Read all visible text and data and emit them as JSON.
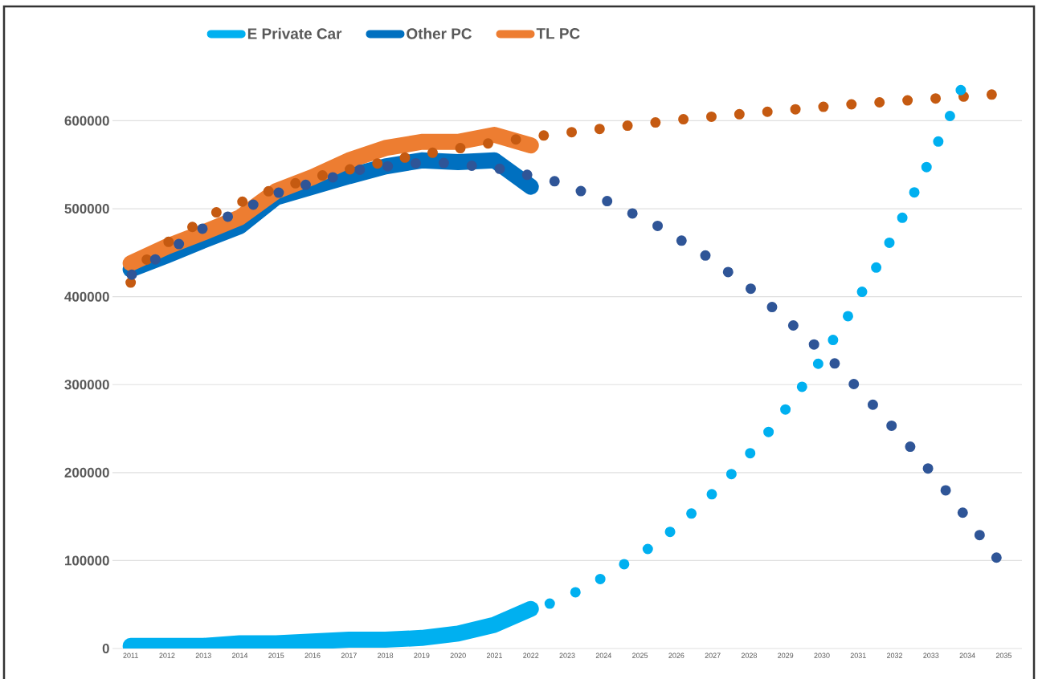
{
  "chart_data": {
    "type": "line",
    "xlim": [
      2010.5,
      2035.5
    ],
    "xticks": [
      2011,
      2012,
      2013,
      2014,
      2015,
      2016,
      2017,
      2018,
      2019,
      2020,
      2021,
      2022,
      2023,
      2024,
      2025,
      2026,
      2027,
      2028,
      2029,
      2030,
      2031,
      2032,
      2033,
      2034,
      2035
    ],
    "ylim": [
      0,
      730000
    ],
    "yticks": [
      0,
      100000,
      200000,
      300000,
      400000,
      500000,
      600000
    ],
    "grid": "y",
    "legend": "top",
    "series": [
      {
        "name": "E Private Car",
        "color": "#00b0f0",
        "line_style": "solid",
        "x": [
          2011,
          2012,
          2013,
          2014,
          2015,
          2016,
          2017,
          2018,
          2019,
          2020,
          2021,
          2022
        ],
        "values": [
          3000,
          3000,
          3000,
          6000,
          6000,
          8000,
          10000,
          10000,
          12000,
          17000,
          27000,
          45000
        ]
      },
      {
        "name": "Other PC",
        "color": "#0070c0",
        "line_style": "solid",
        "x": [
          2011,
          2012,
          2013,
          2014,
          2015,
          2016,
          2017,
          2018,
          2019,
          2020,
          2021,
          2022
        ],
        "values": [
          431000,
          447000,
          464000,
          480000,
          513000,
          525000,
          537000,
          548000,
          555000,
          553000,
          555000,
          525000
        ]
      },
      {
        "name": "TL PC",
        "color": "#ed7d31",
        "line_style": "solid",
        "x": [
          2011,
          2012,
          2013,
          2014,
          2015,
          2016,
          2017,
          2018,
          2019,
          2020,
          2021,
          2022
        ],
        "values": [
          438000,
          457000,
          473000,
          490000,
          520000,
          536000,
          555000,
          569000,
          576000,
          576000,
          584000,
          572000
        ]
      },
      {
        "color": "#c55a11",
        "line_style": "dotted",
        "x": [
          2011,
          2011.44,
          2012.09,
          2013.4,
          2014.86,
          2016.37,
          2018.64,
          2020.94,
          2022.49,
          2026.25,
          2030.9,
          2034.76
        ],
        "values": [
          416000,
          442000,
          464000,
          497000,
          521000,
          539000,
          559000,
          575000,
          584000,
          602000,
          619000,
          630000
        ]
      },
      {
        "color": "#2f5597",
        "line_style": "dotted",
        "x": [
          2011.03,
          2013.0,
          2015.11,
          2017.36,
          2018.9,
          2019.69,
          2021.22,
          2022.68,
          2024.14,
          2025.51,
          2026.83,
          2028.08,
          2029.25,
          2030.38,
          2031.45,
          2032.48,
          2033.46,
          2034.39,
          2034.86
        ],
        "values": [
          425000,
          478000,
          519000,
          545000,
          552000,
          552000,
          545000,
          531000,
          508000,
          480000,
          446000,
          408000,
          366000,
          323000,
          275000,
          227000,
          177000,
          126000,
          100000
        ]
      },
      {
        "color": "#00b0f0",
        "line_style": "dotted",
        "x": [
          2022.52,
          2023.23,
          2023.91,
          2024.57,
          2025.21,
          2025.84,
          2026.43,
          2026.99,
          2027.53,
          2028.05,
          2028.55,
          2029.02,
          2029.48,
          2029.92,
          2030.34,
          2030.75,
          2031.14,
          2031.52,
          2031.89,
          2032.24,
          2032.58,
          2032.92,
          2033.24,
          2033.56,
          2033.86
        ],
        "values": [
          51000,
          64000,
          79000,
          96000,
          113000,
          133000,
          154000,
          176000,
          199000,
          223000,
          247000,
          273000,
          299000,
          325000,
          353000,
          380000,
          408000,
          435000,
          464000,
          492000,
          522000,
          551000,
          580000,
          609000,
          639000
        ]
      }
    ]
  }
}
